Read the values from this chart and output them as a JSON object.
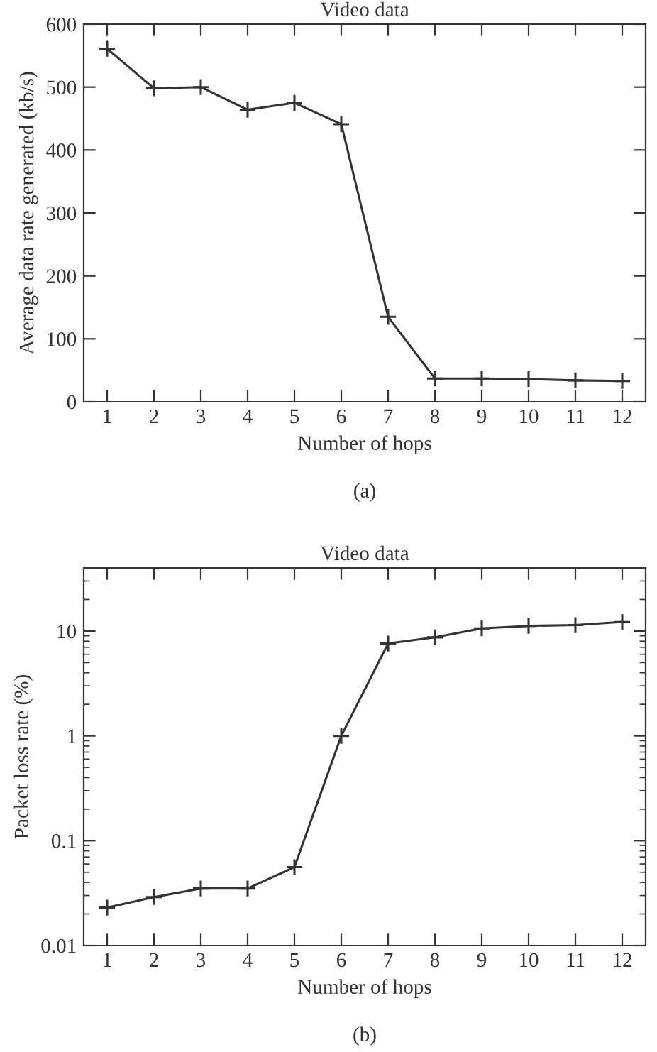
{
  "chart_data": [
    {
      "type": "line",
      "title": "Video data",
      "xlabel": "Number of hops",
      "ylabel": "Average data rate generated (kb/s)",
      "x": [
        1,
        2,
        3,
        4,
        5,
        6,
        7,
        8,
        9,
        10,
        11,
        12
      ],
      "series": [
        {
          "color": "#333333",
          "values": [
            561,
            498,
            500,
            464,
            475,
            441,
            135,
            37,
            37,
            36,
            34,
            33
          ]
        }
      ],
      "xlim": [
        0.5,
        12.5
      ],
      "xticks": [
        1,
        2,
        3,
        4,
        5,
        6,
        7,
        8,
        9,
        10,
        11,
        12
      ],
      "ylim": [
        0,
        600
      ],
      "yticks": [
        0,
        100,
        200,
        300,
        400,
        500,
        600
      ],
      "marker": "cross",
      "line_style": "solid",
      "grid": false,
      "legend": false,
      "annotations": [
        "(a)"
      ]
    },
    {
      "type": "line",
      "title": "Video data",
      "xlabel": "Number of hops",
      "ylabel": "Packet loss rate (%)",
      "x": [
        1,
        2,
        3,
        4,
        5,
        6,
        7,
        8,
        9,
        10,
        11,
        12
      ],
      "series": [
        {
          "color": "#333333",
          "values": [
            0.023,
            0.029,
            0.035,
            0.035,
            0.056,
            1.0,
            7.6,
            8.7,
            10.6,
            11.2,
            11.4,
            12.2
          ]
        }
      ],
      "xlim": [
        0.5,
        12.5
      ],
      "xticks": [
        1,
        2,
        3,
        4,
        5,
        6,
        7,
        8,
        9,
        10,
        11,
        12
      ],
      "ylim": [
        0.01,
        40
      ],
      "yticks": [
        0.01,
        0.1,
        1,
        10
      ],
      "log": "y",
      "marker": "cross",
      "line_style": "solid",
      "grid": false,
      "legend": false,
      "annotations": [
        "(b)"
      ]
    }
  ]
}
